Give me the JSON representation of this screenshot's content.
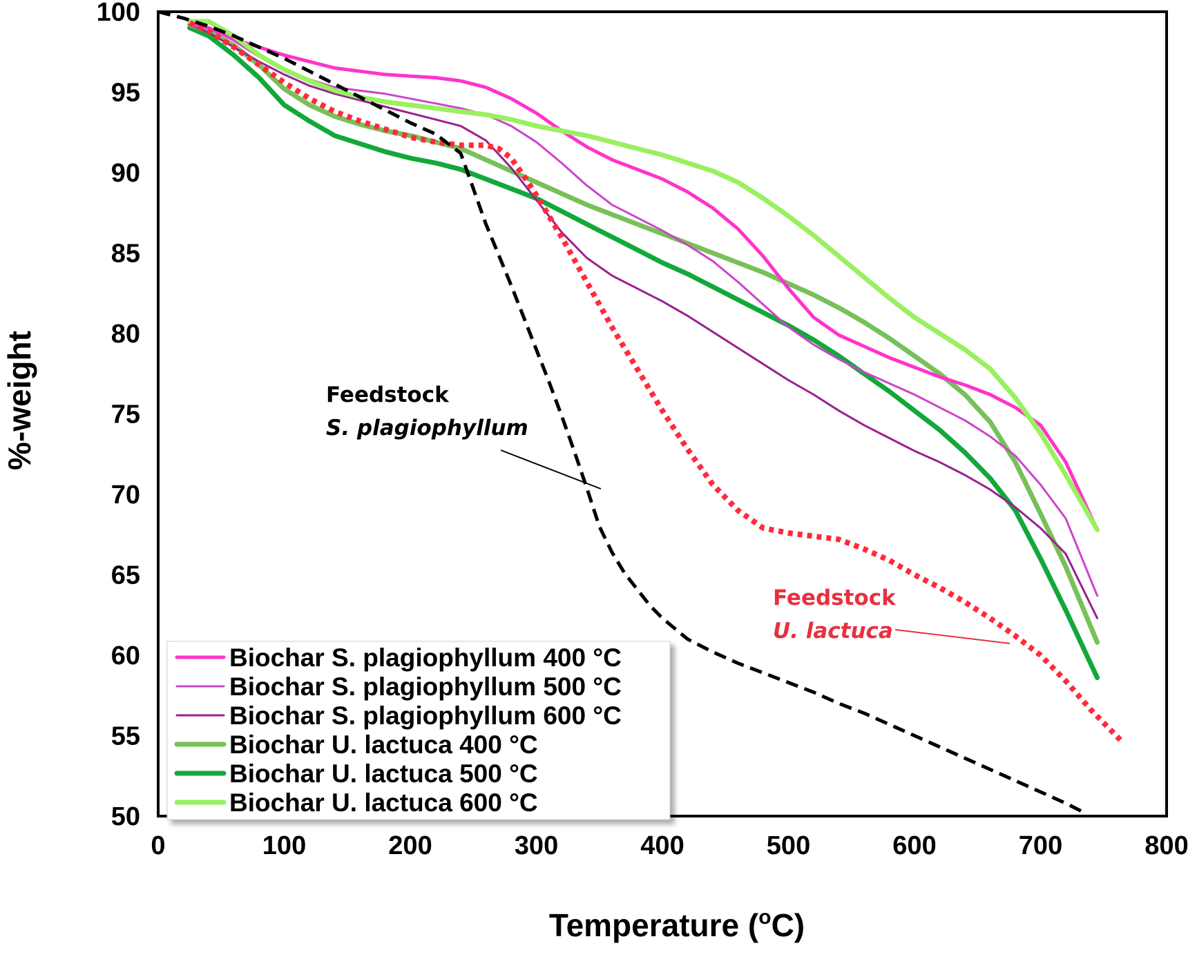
{
  "chart_data": {
    "type": "line",
    "title": "",
    "xlabel": "Temperature (",
    "xlabel_sup": "o",
    "xlabel_tail": "C)",
    "ylabel": "%-weight",
    "xlim": [
      0,
      800
    ],
    "ylim": [
      50,
      100
    ],
    "xticks": [
      0,
      100,
      200,
      300,
      400,
      500,
      600,
      700,
      800
    ],
    "yticks": [
      50,
      55,
      60,
      65,
      70,
      75,
      80,
      85,
      90,
      95,
      100
    ],
    "grid": false,
    "legend_position": "bottom-left",
    "series": [
      {
        "name": "Biochar S. plagiophyllum 400 °C",
        "color": "#ff33cc",
        "style": "solid",
        "weight": "medium",
        "x": [
          25,
          40,
          60,
          80,
          100,
          120,
          140,
          160,
          180,
          200,
          220,
          240,
          260,
          280,
          300,
          320,
          340,
          360,
          380,
          400,
          420,
          440,
          460,
          480,
          500,
          520,
          540,
          560,
          580,
          600,
          620,
          640,
          660,
          680,
          700,
          720,
          745
        ],
        "y": [
          99.2,
          99.0,
          98.3,
          97.8,
          97.3,
          96.9,
          96.5,
          96.3,
          96.1,
          96.0,
          95.9,
          95.7,
          95.3,
          94.6,
          93.7,
          92.6,
          91.6,
          90.8,
          90.2,
          89.6,
          88.8,
          87.8,
          86.5,
          84.8,
          82.8,
          81.0,
          79.9,
          79.2,
          78.5,
          77.9,
          77.3,
          76.8,
          76.2,
          75.4,
          74.3,
          72.0,
          67.8
        ]
      },
      {
        "name": "Biochar S. plagiophyllum 500 °C",
        "color": "#cc44cc",
        "style": "solid",
        "weight": "thin",
        "x": [
          25,
          40,
          60,
          80,
          100,
          120,
          140,
          160,
          180,
          200,
          220,
          240,
          260,
          280,
          300,
          320,
          340,
          360,
          380,
          400,
          420,
          440,
          460,
          480,
          500,
          520,
          540,
          560,
          580,
          600,
          620,
          640,
          660,
          680,
          700,
          720,
          745
        ],
        "y": [
          99.4,
          99.0,
          98.2,
          97.2,
          96.4,
          95.8,
          95.3,
          95.1,
          94.9,
          94.6,
          94.3,
          94.0,
          93.6,
          92.9,
          91.9,
          90.6,
          89.2,
          88.0,
          87.2,
          86.4,
          85.5,
          84.5,
          83.2,
          81.8,
          80.4,
          79.3,
          78.4,
          77.6,
          76.9,
          76.2,
          75.4,
          74.6,
          73.6,
          72.4,
          70.6,
          68.5,
          63.7
        ]
      },
      {
        "name": "Biochar S. plagiophyllum 600 °C",
        "color": "#9b1f8f",
        "style": "solid",
        "weight": "thin",
        "x": [
          25,
          40,
          60,
          80,
          100,
          120,
          140,
          160,
          180,
          200,
          220,
          240,
          260,
          280,
          300,
          320,
          340,
          360,
          380,
          400,
          420,
          440,
          460,
          480,
          500,
          520,
          540,
          560,
          580,
          600,
          620,
          640,
          660,
          680,
          700,
          720,
          745
        ],
        "y": [
          99.2,
          98.7,
          97.8,
          96.9,
          96.1,
          95.4,
          94.9,
          94.5,
          94.1,
          93.7,
          93.3,
          92.9,
          92.0,
          90.3,
          88.3,
          86.3,
          84.7,
          83.6,
          82.8,
          82.0,
          81.1,
          80.1,
          79.1,
          78.1,
          77.1,
          76.2,
          75.2,
          74.3,
          73.5,
          72.7,
          72.0,
          71.2,
          70.3,
          69.2,
          67.9,
          66.3,
          62.3
        ]
      },
      {
        "name": "Biochar U. lactuca  400 °C",
        "color": "#77c05a",
        "style": "solid",
        "weight": "thick",
        "x": [
          25,
          40,
          60,
          80,
          100,
          120,
          140,
          160,
          180,
          200,
          220,
          240,
          260,
          280,
          300,
          320,
          340,
          360,
          380,
          400,
          420,
          440,
          460,
          480,
          500,
          520,
          540,
          560,
          580,
          600,
          620,
          640,
          660,
          680,
          700,
          720,
          745
        ],
        "y": [
          99.2,
          98.8,
          97.9,
          96.7,
          95.2,
          94.2,
          93.5,
          93.0,
          92.6,
          92.3,
          91.9,
          91.5,
          90.8,
          90.1,
          89.4,
          88.7,
          88.0,
          87.4,
          86.8,
          86.2,
          85.6,
          85.0,
          84.4,
          83.8,
          83.1,
          82.4,
          81.6,
          80.7,
          79.7,
          78.6,
          77.5,
          76.2,
          74.5,
          72.0,
          68.8,
          65.5,
          60.8
        ]
      },
      {
        "name": "Biochar U. lactuca  500 °C",
        "color": "#12a83a",
        "style": "solid",
        "weight": "thick",
        "x": [
          25,
          40,
          60,
          80,
          100,
          120,
          140,
          160,
          180,
          200,
          220,
          240,
          260,
          280,
          300,
          320,
          340,
          360,
          380,
          400,
          420,
          440,
          460,
          480,
          500,
          520,
          540,
          560,
          580,
          600,
          620,
          640,
          660,
          680,
          700,
          720,
          745
        ],
        "y": [
          99.0,
          98.5,
          97.3,
          95.9,
          94.2,
          93.2,
          92.3,
          91.8,
          91.3,
          90.9,
          90.6,
          90.2,
          89.6,
          89.0,
          88.4,
          87.6,
          86.8,
          86.0,
          85.2,
          84.4,
          83.7,
          82.9,
          82.1,
          81.3,
          80.5,
          79.6,
          78.6,
          77.5,
          76.4,
          75.2,
          74.0,
          72.6,
          71.0,
          69.0,
          66.0,
          62.8,
          58.6
        ]
      },
      {
        "name": "Biochar U. lactuca  600 °C",
        "color": "#99f060",
        "style": "solid",
        "weight": "thick",
        "x": [
          25,
          40,
          60,
          80,
          100,
          120,
          140,
          160,
          180,
          200,
          220,
          240,
          260,
          280,
          300,
          320,
          340,
          360,
          380,
          400,
          420,
          440,
          460,
          480,
          500,
          520,
          540,
          560,
          580,
          600,
          620,
          640,
          660,
          680,
          700,
          720,
          745
        ],
        "y": [
          99.4,
          99.4,
          98.5,
          97.3,
          96.4,
          95.7,
          95.1,
          94.7,
          94.4,
          94.2,
          94.0,
          93.8,
          93.6,
          93.3,
          92.9,
          92.6,
          92.3,
          91.9,
          91.5,
          91.1,
          90.6,
          90.1,
          89.4,
          88.4,
          87.3,
          86.1,
          84.8,
          83.5,
          82.2,
          81.0,
          80.0,
          79.0,
          77.8,
          76.0,
          73.8,
          71.2,
          67.8
        ]
      },
      {
        "name": "Feedstock S. plagiophyllum",
        "color": "#000000",
        "style": "dashed",
        "weight": "medium",
        "x": [
          0,
          20,
          40,
          60,
          80,
          100,
          120,
          140,
          160,
          180,
          200,
          220,
          240,
          250,
          260,
          270,
          280,
          290,
          300,
          310,
          320,
          330,
          340,
          350,
          360,
          370,
          380,
          390,
          400,
          420,
          440,
          460,
          480,
          500,
          520,
          540,
          560,
          580,
          600,
          620,
          640,
          660,
          680,
          700,
          720,
          735
        ],
        "y": [
          100,
          99.6,
          99.1,
          98.5,
          97.8,
          97.1,
          96.3,
          95.5,
          94.7,
          93.9,
          93.1,
          92.4,
          91.2,
          89.0,
          86.8,
          84.9,
          83.0,
          81.0,
          79.0,
          77.0,
          74.9,
          72.7,
          70.4,
          68.0,
          66.4,
          65.1,
          64.1,
          63.1,
          62.3,
          61.0,
          60.2,
          59.5,
          58.9,
          58.3,
          57.7,
          57.0,
          56.4,
          55.7,
          55.0,
          54.3,
          53.6,
          52.9,
          52.2,
          51.5,
          50.8,
          50.2
        ]
      },
      {
        "name": "Feedstock U. lactuca",
        "color": "#ff2a3a",
        "style": "dotted",
        "weight": "thick",
        "x": [
          25,
          40,
          60,
          80,
          100,
          120,
          140,
          160,
          180,
          200,
          220,
          240,
          260,
          270,
          280,
          290,
          300,
          320,
          340,
          360,
          380,
          400,
          420,
          440,
          460,
          480,
          500,
          520,
          540,
          560,
          580,
          600,
          620,
          640,
          660,
          680,
          700,
          720,
          740,
          765
        ],
        "y": [
          99.3,
          98.8,
          97.8,
          96.7,
          95.6,
          94.6,
          93.8,
          93.2,
          92.7,
          92.2,
          91.9,
          91.7,
          91.7,
          91.5,
          90.9,
          89.8,
          88.6,
          86.0,
          83.2,
          80.4,
          77.8,
          75.2,
          72.8,
          70.6,
          69.0,
          67.9,
          67.6,
          67.4,
          67.2,
          66.6,
          65.9,
          65.0,
          64.2,
          63.3,
          62.3,
          61.2,
          60.0,
          58.4,
          56.6,
          54.6
        ]
      }
    ],
    "legend": [
      "Biochar S. plagiophyllum 400 °C",
      "Biochar S. plagiophyllum 500 °C",
      "Biochar S. plagiophyllum 600 °C",
      "Biochar U. lactuca  400 °C",
      "Biochar U. lactuca  500 °C",
      "Biochar U. lactuca  600 °C"
    ],
    "annotations": [
      {
        "line1": "Feedstock",
        "line2": "S. plagiophyllum",
        "color": "#000000",
        "target": "Feedstock S. plagiophyllum"
      },
      {
        "line1": "Feedstock",
        "line2": "U. lactuca",
        "color": "#e8303f",
        "target": "Feedstock U. lactuca"
      }
    ]
  }
}
